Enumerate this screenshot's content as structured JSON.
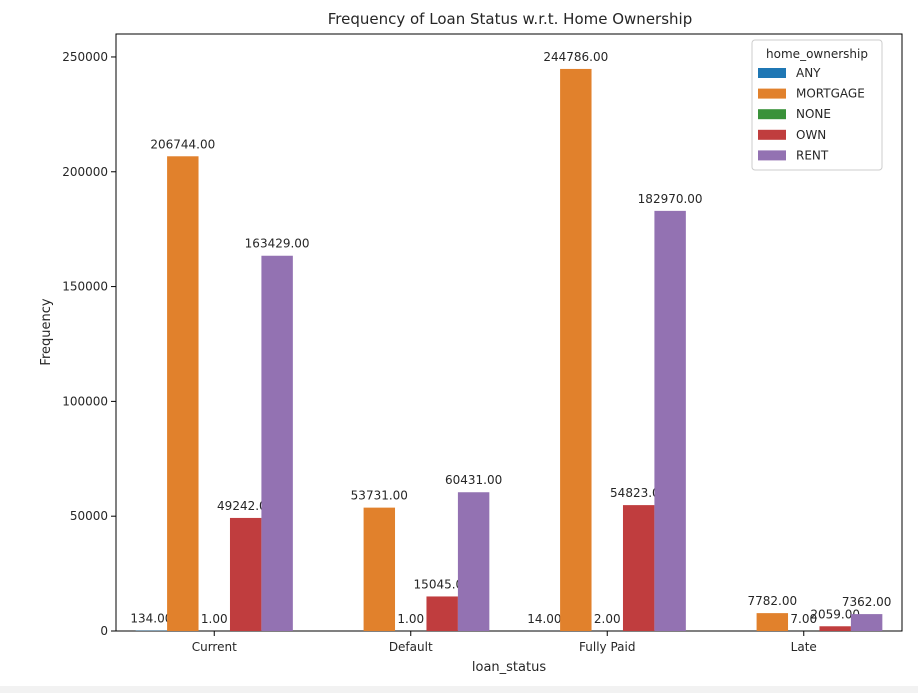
{
  "chart_data": {
    "type": "bar",
    "title": "Frequency of Loan Status w.r.t. Home Ownership",
    "xlabel": "loan_status",
    "ylabel": "Frequency",
    "ylim": [
      0,
      260000
    ],
    "yticks": [
      0,
      50000,
      100000,
      150000,
      200000,
      250000
    ],
    "categories": [
      "Current",
      "Default",
      "Fully Paid",
      "Late"
    ],
    "legend": {
      "title": "home_ownership",
      "placement": "top-right"
    },
    "series": [
      {
        "name": "ANY",
        "color": "#1f77b4",
        "values": [
          134,
          0,
          14,
          0
        ],
        "labels": [
          "134.00",
          "",
          "14.00",
          ""
        ]
      },
      {
        "name": "MORTGAGE",
        "color": "#e1812c",
        "values": [
          206744,
          53731,
          244786,
          7782
        ],
        "labels": [
          "206744.00",
          "53731.00",
          "244786.00",
          "7782.00"
        ]
      },
      {
        "name": "NONE",
        "color": "#3a923a",
        "values": [
          1,
          1,
          2,
          7
        ],
        "labels": [
          "1.00",
          "1.00",
          "2.00",
          "7.00"
        ]
      },
      {
        "name": "OWN",
        "color": "#c03d3e",
        "values": [
          49242,
          15045,
          54823,
          2059
        ],
        "labels": [
          "49242.00",
          "15045.00",
          "54823.00",
          "2059.00"
        ]
      },
      {
        "name": "RENT",
        "color": "#9372b2",
        "values": [
          163429,
          60431,
          182970,
          7362
        ],
        "labels": [
          "163429.00",
          "60431.00",
          "182970.00",
          "7362.00"
        ]
      }
    ],
    "grid": false
  }
}
